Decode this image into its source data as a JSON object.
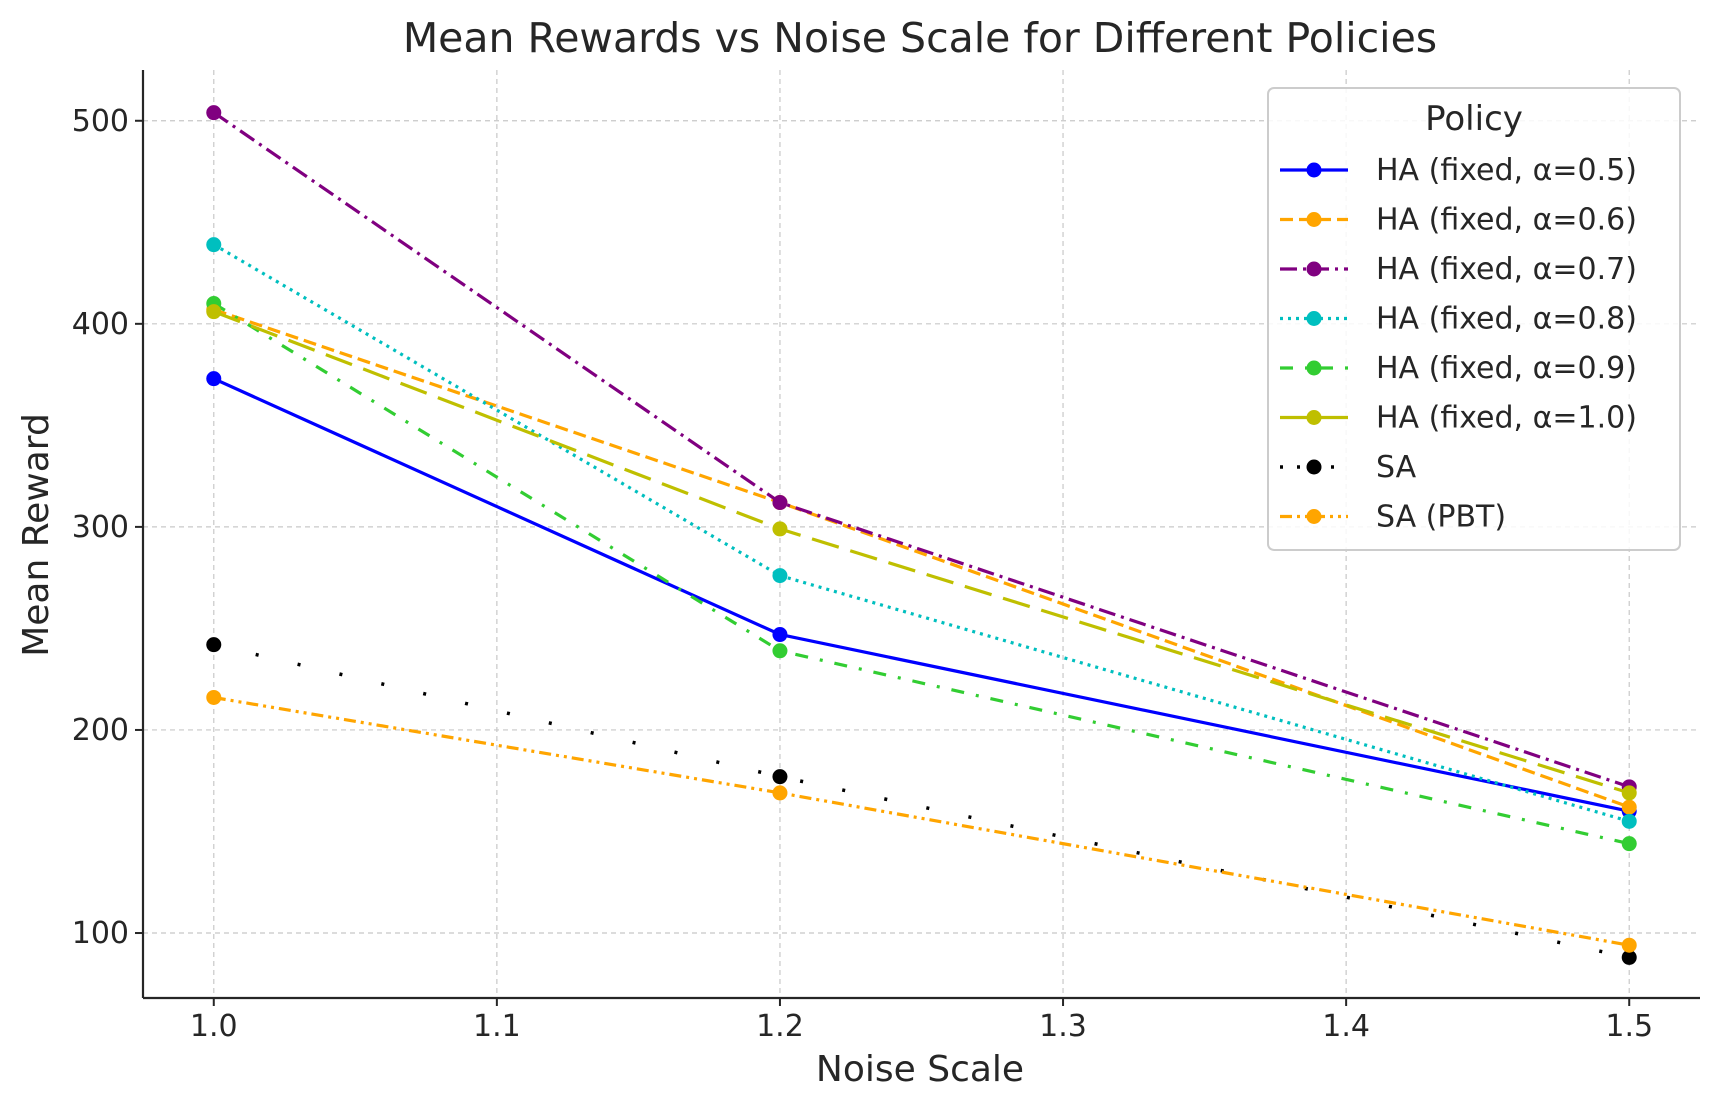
{
  "chart_data": {
    "type": "line",
    "title": "Mean Rewards vs Noise Scale for Different Policies",
    "xlabel": "Noise Scale",
    "ylabel": "Mean Reward",
    "xlim": [
      0.975,
      1.525
    ],
    "ylim": [
      68,
      525
    ],
    "xticks": [
      1.0,
      1.1,
      1.2,
      1.3,
      1.4,
      1.5
    ],
    "xtick_labels": [
      "1.0",
      "1.1",
      "1.2",
      "1.3",
      "1.4",
      "1.5"
    ],
    "yticks": [
      100,
      200,
      300,
      400,
      500
    ],
    "ytick_labels": [
      "100",
      "200",
      "300",
      "400",
      "500"
    ],
    "grid": true,
    "legend_title": "Policy",
    "legend_position": "top-right",
    "x": [
      1.0,
      1.2,
      1.5
    ],
    "series": [
      {
        "name": "HA (fixed, α=0.5)",
        "values": [
          373,
          247,
          160
        ],
        "color": "#0000ff",
        "style": "solid"
      },
      {
        "name": "HA (fixed, α=0.6)",
        "values": [
          407,
          312,
          162
        ],
        "color": "#ffa500",
        "style": "dashed"
      },
      {
        "name": "HA (fixed, α=0.7)",
        "values": [
          504,
          312,
          172
        ],
        "color": "#800080",
        "style": "dashdot"
      },
      {
        "name": "HA (fixed, α=0.8)",
        "values": [
          439,
          276,
          155
        ],
        "color": "#00bfbf",
        "style": "dotted"
      },
      {
        "name": "HA (fixed, α=0.9)",
        "values": [
          410,
          239,
          144
        ],
        "color": "#32cd32",
        "style": "dashdot-sparse"
      },
      {
        "name": "HA (fixed, α=1.0)",
        "values": [
          406,
          299,
          169
        ],
        "color": "#bfbf00",
        "style": "longdash"
      },
      {
        "name": "SA",
        "values": [
          242,
          177,
          88
        ],
        "color": "#000000",
        "style": "loose-dotted"
      },
      {
        "name": "SA (PBT)",
        "values": [
          216,
          169,
          94
        ],
        "color": "#ffa500",
        "style": "dashdotdot"
      }
    ]
  }
}
